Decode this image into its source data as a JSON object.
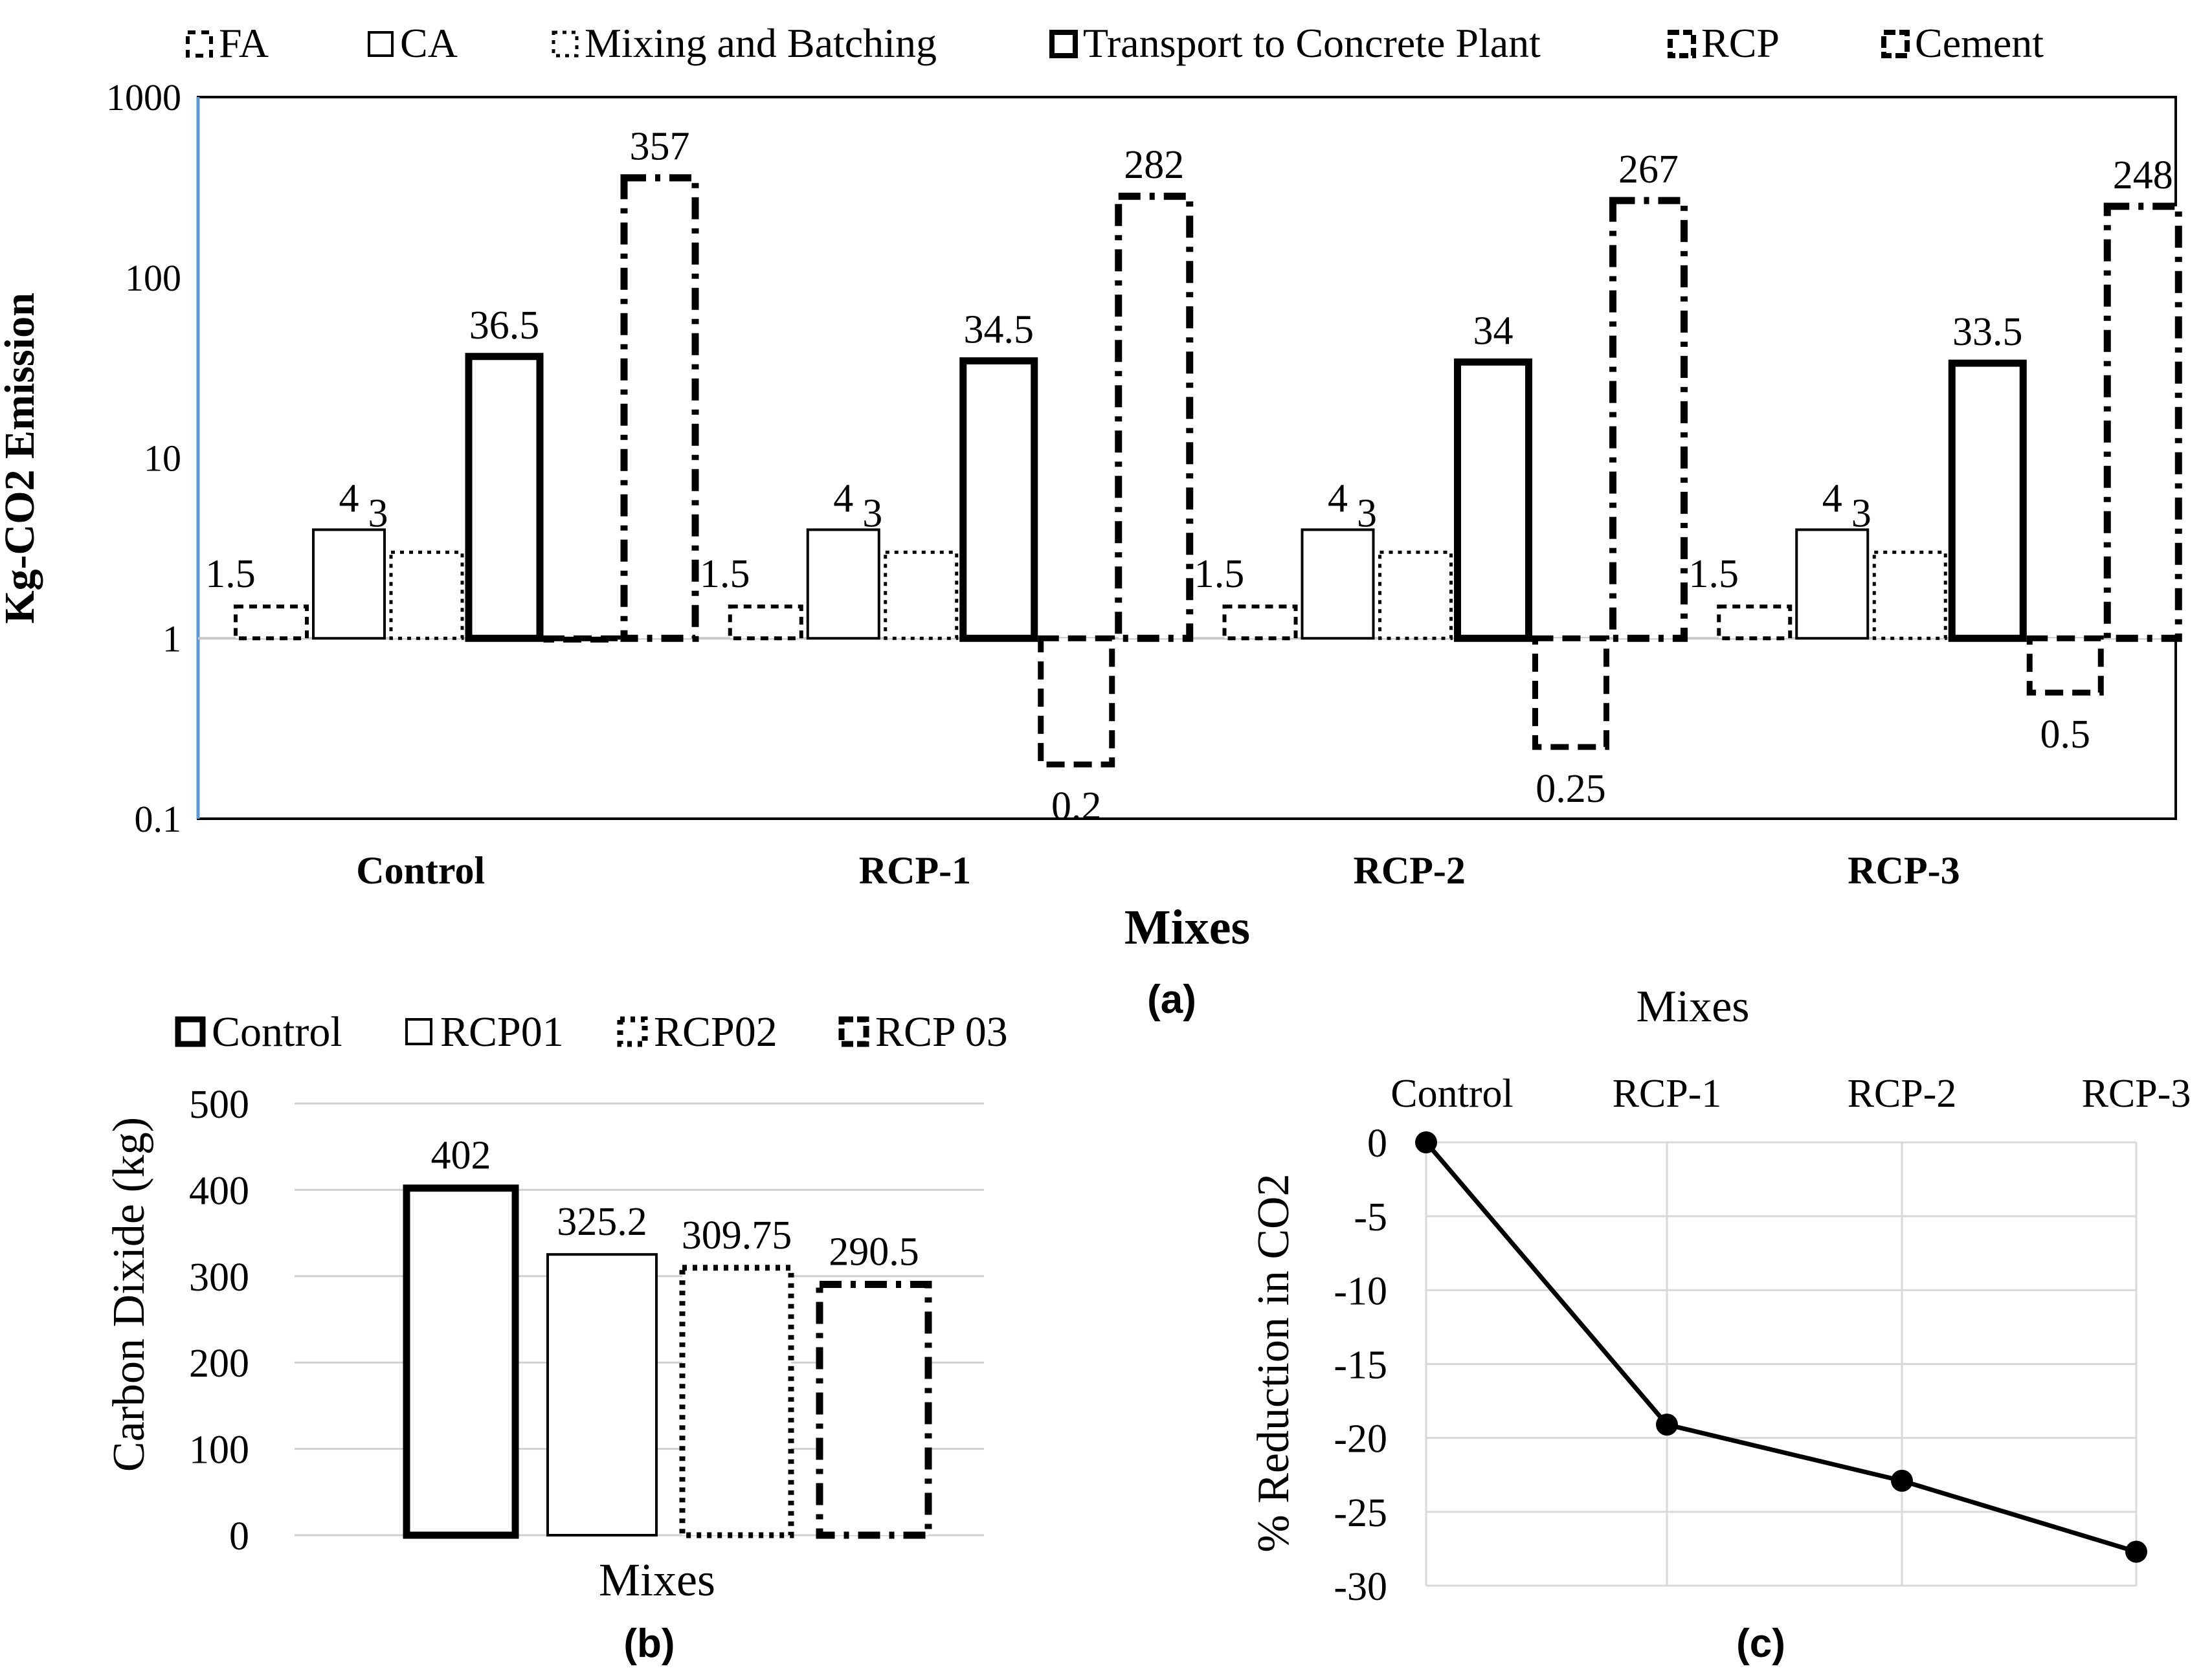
{
  "chart_data": [
    {
      "id": "a",
      "type": "bar",
      "scale": "log",
      "panel_label": "(a)",
      "xlabel": "Mixes",
      "ylabel": "Kg-CO2 Emission",
      "ylim": [
        0.1,
        1000
      ],
      "yticks": [
        "0.1",
        "1",
        "10",
        "100",
        "1000"
      ],
      "categories": [
        "Control",
        "RCP-1",
        "RCP-2",
        "RCP-3"
      ],
      "legend_position": "top",
      "series": [
        {
          "name": "FA",
          "values": [
            1.5,
            1.5,
            1.5,
            1.5
          ],
          "labels": [
            "1.5",
            "1.5",
            "1.5",
            "1.5"
          ]
        },
        {
          "name": "CA",
          "values": [
            4,
            4,
            4,
            4
          ],
          "labels": [
            "4",
            "4",
            "4",
            "4"
          ]
        },
        {
          "name": "Mixing and Batching",
          "values": [
            3,
            3,
            3,
            3
          ],
          "labels": [
            "3",
            "3",
            "3",
            "3"
          ]
        },
        {
          "name": "Transport to Concrete Plant",
          "values": [
            36.5,
            34.5,
            34,
            33.5
          ],
          "labels": [
            "36.5",
            "34.5",
            "34",
            "33.5"
          ]
        },
        {
          "name": "RCP",
          "values": [
            1,
            0.2,
            0.25,
            0.5
          ],
          "labels": [
            "",
            "0.2",
            "0.25",
            "0.5"
          ]
        },
        {
          "name": "Cement",
          "values": [
            357,
            282,
            267,
            248
          ],
          "labels": [
            "357",
            "282",
            "267",
            "248"
          ]
        }
      ]
    },
    {
      "id": "b",
      "type": "bar",
      "panel_label": "(b)",
      "xlabel": "Mixes",
      "ylabel": "Carbon Dixide (kg)",
      "ylim": [
        0,
        500
      ],
      "yticks": [
        "0",
        "100",
        "200",
        "300",
        "400",
        "500"
      ],
      "legend_position": "top",
      "series": [
        {
          "name": "Control",
          "value": 402,
          "label": "402"
        },
        {
          "name": "RCP01",
          "value": 325.2,
          "label": "325.2"
        },
        {
          "name": "RCP02",
          "value": 309.75,
          "label": "309.75"
        },
        {
          "name": "RCP 03",
          "value": 290.5,
          "label": "290.5"
        }
      ]
    },
    {
      "id": "c",
      "type": "line",
      "panel_label": "(c)",
      "xlabel": "Mixes",
      "ylabel": "% Reduction in CO2",
      "ylim": [
        -30,
        0
      ],
      "yticks": [
        "0",
        "-5",
        "-10",
        "-15",
        "-20",
        "-25",
        "-30"
      ],
      "categories": [
        "Control",
        "RCP-1",
        "RCP-2",
        "RCP-3"
      ],
      "values": [
        0,
        -19.1,
        -22.9,
        -27.7
      ],
      "grid": true
    }
  ]
}
